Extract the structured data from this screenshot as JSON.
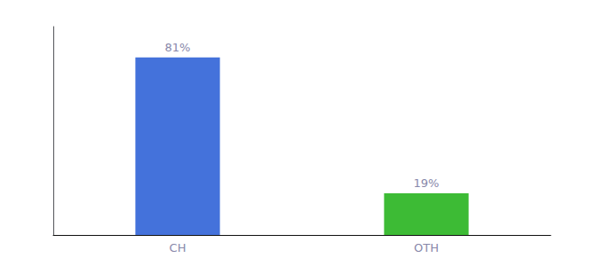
{
  "chart_data": {
    "type": "bar",
    "categories": [
      "CH",
      "OTH"
    ],
    "values": [
      81,
      19
    ],
    "value_labels": [
      "81%",
      "19%"
    ],
    "colors": [
      "#4472db",
      "#3dbb35"
    ],
    "ylim": [
      0,
      95
    ],
    "data_labels": true,
    "tick_labels": "x",
    "grid": false
  }
}
